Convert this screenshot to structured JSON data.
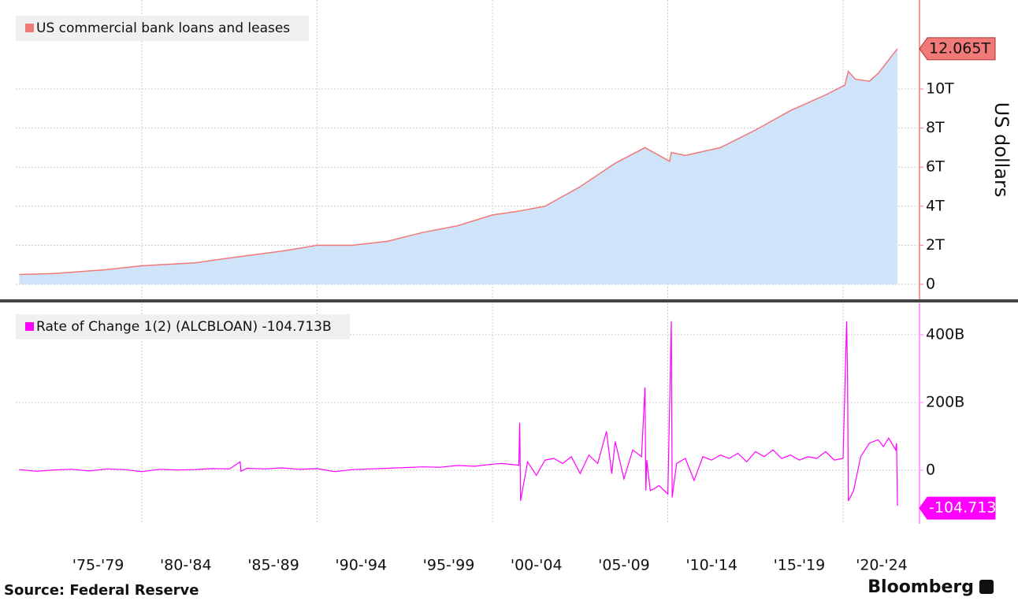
{
  "chart_data": [
    {
      "type": "area",
      "legend_corner": "top-left",
      "y_axis_label": "US dollars",
      "xlim": [
        1972.8,
        2024.27
      ],
      "xgrid": [
        1980,
        1990,
        2000,
        2010,
        2020
      ],
      "ylim": [
        -0.85,
        14.56
      ],
      "yticks": [
        0,
        {
          "value": 2,
          "label": "2T"
        },
        {
          "value": 4,
          "label": "4T"
        },
        {
          "value": 6,
          "label": "6T"
        },
        {
          "value": 8,
          "label": "8T"
        },
        {
          "value": 10,
          "label": "10T"
        }
      ],
      "grid": true,
      "series": [
        {
          "name": "US commercial bank loans and leases",
          "color": "#f07a78",
          "fill": "#cfe4f9",
          "end_label": "12.065T",
          "x": [
            1973,
            1975,
            1978,
            1980,
            1983,
            1985,
            1988,
            1990,
            1992,
            1994,
            1996,
            1998,
            2000,
            2001.5,
            2003,
            2005,
            2007,
            2008.7,
            2009.5,
            2010.1,
            2010.2,
            2011,
            2013,
            2015,
            2017,
            2019,
            2020.1,
            2020.3,
            2020.7,
            2021.5,
            2022,
            2023.1
          ],
          "values": [
            0.5,
            0.55,
            0.75,
            0.95,
            1.1,
            1.35,
            1.7,
            2.0,
            2.0,
            2.2,
            2.65,
            3.0,
            3.55,
            3.75,
            4.0,
            5.0,
            6.2,
            7.0,
            6.6,
            6.3,
            6.75,
            6.6,
            7.0,
            7.9,
            8.9,
            9.7,
            10.2,
            10.9,
            10.5,
            10.4,
            10.8,
            12.065
          ]
        }
      ]
    },
    {
      "type": "line",
      "legend_corner": "top-left",
      "xlim": [
        1972.8,
        2024.27
      ],
      "xgrid": [
        1980,
        1990,
        2000,
        2010,
        2020
      ],
      "xticks": [
        {
          "value": 1977.5,
          "label": "'75-'79"
        },
        {
          "value": 1982.5,
          "label": "'80-'84"
        },
        {
          "value": 1987.5,
          "label": "'85-'89"
        },
        {
          "value": 1992.5,
          "label": "'90-'94"
        },
        {
          "value": 1997.5,
          "label": "'95-'99"
        },
        {
          "value": 2002.5,
          "label": "'00-'04"
        },
        {
          "value": 2007.5,
          "label": "'05-'09"
        },
        {
          "value": 2012.5,
          "label": "'10-'14"
        },
        {
          "value": 2017.5,
          "label": "'15-'19"
        },
        {
          "value": 2022.2,
          "label": "'20-'24"
        }
      ],
      "ylim": [
        -158,
        493
      ],
      "yticks": [
        0,
        {
          "value": 200,
          "label": "200B"
        },
        {
          "value": 400,
          "label": "400B"
        }
      ],
      "grid": true,
      "series": [
        {
          "name": "Rate of Change 1(2) (ALCBLOAN) -104.713B",
          "color": "#ff00ff",
          "end_label": "-104.713B",
          "x": [
            1973,
            1974,
            1975,
            1976,
            1977,
            1978,
            1979,
            1980,
            1981,
            1982,
            1983,
            1984,
            1985,
            1985.6,
            1985.65,
            1986,
            1987,
            1988,
            1989,
            1990,
            1991,
            1992,
            1993,
            1994,
            1995,
            1996,
            1997,
            1998,
            1999,
            2000,
            2000.5,
            2001.5,
            2001.55,
            2001.6,
            2002,
            2002.5,
            2003,
            2003.5,
            2004,
            2004.5,
            2005,
            2005.5,
            2006,
            2006.5,
            2006.8,
            2007,
            2007.5,
            2008,
            2008.5,
            2008.7,
            2008.75,
            2008.8,
            2009,
            2009.2,
            2009.5,
            2010,
            2010.2,
            2010.25,
            2010.5,
            2011,
            2011.5,
            2012,
            2012.5,
            2013,
            2013.5,
            2014,
            2014.5,
            2015,
            2015.5,
            2016,
            2016.5,
            2017,
            2017.5,
            2018,
            2018.5,
            2019,
            2019.5,
            2020.0,
            2020.2,
            2020.25,
            2020.3,
            2020.6,
            2021,
            2021.5,
            2022,
            2022.3,
            2022.6,
            2023,
            2023.05,
            2023.1
          ],
          "values": [
            2,
            -3,
            1,
            3,
            -2,
            4,
            2,
            -4,
            3,
            1,
            2,
            5,
            4,
            25,
            -3,
            6,
            4,
            7,
            3,
            5,
            -4,
            2,
            4,
            6,
            8,
            10,
            9,
            14,
            12,
            18,
            20,
            15,
            140,
            -90,
            25,
            -15,
            30,
            35,
            20,
            40,
            -10,
            45,
            20,
            115,
            -10,
            85,
            -25,
            60,
            40,
            245,
            -60,
            30,
            -60,
            -55,
            -45,
            -70,
            440,
            -80,
            20,
            35,
            -30,
            40,
            30,
            45,
            35,
            50,
            25,
            55,
            40,
            60,
            35,
            45,
            30,
            40,
            35,
            55,
            30,
            35,
            440,
            300,
            -90,
            -60,
            40,
            80,
            90,
            70,
            95,
            60,
            80,
            -104.713
          ]
        }
      ]
    }
  ],
  "source": "Source: Federal Reserve",
  "brand": "Bloomberg"
}
